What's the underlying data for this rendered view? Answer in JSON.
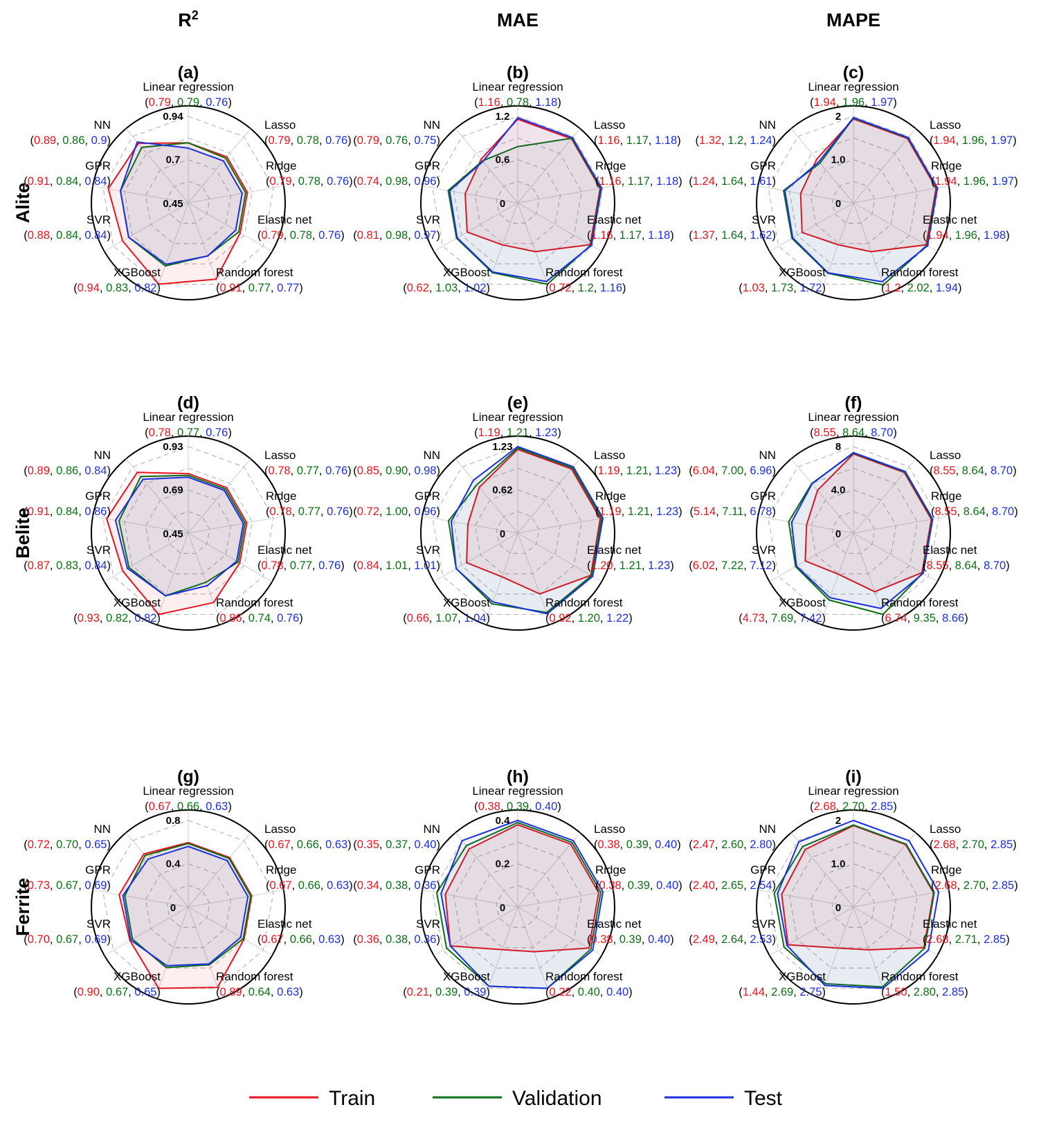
{
  "figure": {
    "columns": [
      {
        "name": "R",
        "sup": "2"
      },
      {
        "name": "MAE",
        "sup": ""
      },
      {
        "name": "MAPE",
        "sup": ""
      }
    ],
    "rows": [
      "Alite",
      "Belite",
      "Ferrite"
    ]
  },
  "legend": [
    {
      "label": "Train",
      "color": "#e8141e"
    },
    {
      "label": "Validation",
      "color": "#0c6e14"
    },
    {
      "label": "Test",
      "color": "#1b2fe0"
    }
  ],
  "chart_data": [
    {
      "type": "radar",
      "panel": "(a)",
      "metric": "R2",
      "phase": "Alite",
      "axes": [
        "Linear regression",
        "Lasso",
        "Ridge",
        "Elastic net",
        "Random forest",
        "XGBoost",
        "SVR",
        "GPR",
        "NN"
      ],
      "rlim": [
        0.45,
        0.94
      ],
      "ticks": [
        "0.45",
        "0.7",
        "0.94"
      ],
      "series": [
        {
          "name": "Train",
          "values": [
            0.79,
            0.79,
            0.79,
            0.79,
            0.91,
            0.94,
            0.88,
            0.91,
            0.89
          ],
          "labels": [
            "0.79",
            "0.79",
            "0.79",
            "0.79",
            "0.91",
            "0.94",
            "0.88",
            "0.91",
            "0.89"
          ]
        },
        {
          "name": "Validation",
          "values": [
            0.79,
            0.78,
            0.78,
            0.78,
            0.77,
            0.83,
            0.84,
            0.84,
            0.86
          ],
          "labels": [
            "0.79",
            "0.78",
            "0.78",
            "0.78",
            "0.77",
            "0.83",
            "0.84",
            "0.84",
            "0.86"
          ]
        },
        {
          "name": "Test",
          "values": [
            0.76,
            0.76,
            0.76,
            0.76,
            0.77,
            0.82,
            0.84,
            0.84,
            0.9
          ],
          "labels": [
            "0.76",
            "0.76",
            "0.76",
            "0.76",
            "0.77",
            "0.82",
            "0.84",
            "0.84",
            "0.9"
          ]
        }
      ]
    },
    {
      "type": "radar",
      "panel": "(b)",
      "metric": "MAE",
      "phase": "Alite",
      "axes": [
        "Linear regression",
        "Lasso",
        "Ridge",
        "Elastic net",
        "Random forest",
        "XGBoost",
        "SVR",
        "GPR",
        "NN"
      ],
      "rlim": [
        0,
        1.2
      ],
      "ticks": [
        "0",
        "0.6",
        "1.2"
      ],
      "series": [
        {
          "name": "Train",
          "values": [
            1.16,
            1.16,
            1.16,
            1.16,
            0.72,
            0.62,
            0.81,
            0.74,
            0.79
          ],
          "labels": [
            "1.16",
            "1.16",
            "1.16",
            "1.16",
            "0.72",
            "0.62",
            "0.81",
            "0.74",
            "0.79"
          ]
        },
        {
          "name": "Validation",
          "values": [
            0.78,
            1.17,
            1.17,
            1.17,
            1.2,
            1.03,
            0.98,
            0.98,
            0.76
          ],
          "labels": [
            "0.78",
            "1.17",
            "1.17",
            "1.17",
            "1.2",
            "1.03",
            "0.98",
            "0.98",
            "0.76"
          ]
        },
        {
          "name": "Test",
          "values": [
            1.18,
            1.18,
            1.18,
            1.18,
            1.16,
            1.02,
            0.97,
            0.96,
            0.75
          ],
          "labels": [
            "1.18",
            "1.18",
            "1.18",
            "1.18",
            "1.16",
            "1.02",
            "0.97",
            "0.96",
            "0.75"
          ]
        }
      ]
    },
    {
      "type": "radar",
      "panel": "(c)",
      "metric": "MAPE",
      "phase": "Alite",
      "axes": [
        "Linear regression",
        "Lasso",
        "Ridge",
        "Elastic net",
        "Random forest",
        "XGBoost",
        "SVR",
        "GPR",
        "NN"
      ],
      "rlim": [
        0,
        2
      ],
      "ticks": [
        "0",
        "1.0",
        "2"
      ],
      "series": [
        {
          "name": "Train",
          "values": [
            1.94,
            1.94,
            1.94,
            1.94,
            1.2,
            1.03,
            1.37,
            1.24,
            1.32
          ],
          "labels": [
            "1.94",
            "1.94",
            "1.94",
            "1.94",
            "1.2",
            "1.03",
            "1.37",
            "1.24",
            "1.32"
          ]
        },
        {
          "name": "Validation",
          "values": [
            1.96,
            1.96,
            1.96,
            1.96,
            2.02,
            1.73,
            1.64,
            1.64,
            1.2
          ],
          "labels": [
            "1.96",
            "1.96",
            "1.96",
            "1.96",
            "2.02",
            "1.73",
            "1.64",
            "1.64",
            "1.2"
          ]
        },
        {
          "name": "Test",
          "values": [
            1.97,
            1.97,
            1.97,
            1.98,
            1.94,
            1.72,
            1.62,
            1.61,
            1.24
          ],
          "labels": [
            "1.97",
            "1.97",
            "1.97",
            "1.98",
            "1.94",
            "1.72",
            "1.62",
            "1.61",
            "1.24"
          ]
        }
      ]
    },
    {
      "type": "radar",
      "panel": "(d)",
      "metric": "R2",
      "phase": "Belite",
      "axes": [
        "Linear regression",
        "Lasso",
        "Ridge",
        "Elastic net",
        "Random forest",
        "XGBoost",
        "SVR",
        "GPR",
        "NN"
      ],
      "rlim": [
        0.45,
        0.93
      ],
      "ticks": [
        "0.45",
        "0.69",
        "0.93"
      ],
      "series": [
        {
          "name": "Train",
          "values": [
            0.78,
            0.78,
            0.78,
            0.78,
            0.86,
            0.93,
            0.87,
            0.91,
            0.89
          ],
          "labels": [
            "0.78",
            "0.78",
            "0.78",
            "0.78",
            "0.86",
            "0.93",
            "0.87",
            "0.91",
            "0.89"
          ]
        },
        {
          "name": "Validation",
          "values": [
            0.77,
            0.77,
            0.77,
            0.77,
            0.74,
            0.82,
            0.83,
            0.84,
            0.86
          ],
          "labels": [
            "0.77",
            "0.77",
            "0.77",
            "0.77",
            "0.74",
            "0.82",
            "0.83",
            "0.84",
            "0.86"
          ]
        },
        {
          "name": "Test",
          "values": [
            0.76,
            0.76,
            0.76,
            0.76,
            0.76,
            0.82,
            0.84,
            0.86,
            0.84
          ],
          "labels": [
            "0.76",
            "0.76",
            "0.76",
            "0.76",
            "0.76",
            "0.82",
            "0.84",
            "0.86",
            "0.84"
          ]
        }
      ]
    },
    {
      "type": "radar",
      "panel": "(e)",
      "metric": "MAE",
      "phase": "Belite",
      "axes": [
        "Linear regression",
        "Lasso",
        "Ridge",
        "Elastic net",
        "Random forest",
        "XGBoost",
        "SVR",
        "GPR",
        "NN"
      ],
      "rlim": [
        0,
        1.23
      ],
      "ticks": [
        "0",
        "0.62",
        "1.23"
      ],
      "series": [
        {
          "name": "Train",
          "values": [
            1.19,
            1.19,
            1.19,
            1.2,
            0.92,
            0.66,
            0.84,
            0.72,
            0.85
          ],
          "labels": [
            "1.19",
            "1.19",
            "1.19",
            "1.20",
            "0.92",
            "0.66",
            "0.84",
            "0.72",
            "0.85"
          ]
        },
        {
          "name": "Validation",
          "values": [
            1.21,
            1.21,
            1.21,
            1.21,
            1.2,
            1.07,
            1.01,
            1.0,
            0.9
          ],
          "labels": [
            "1.21",
            "1.21",
            "1.21",
            "1.21",
            "1.20",
            "1.07",
            "1.01",
            "1.00",
            "0.90"
          ]
        },
        {
          "name": "Test",
          "values": [
            1.23,
            1.23,
            1.23,
            1.23,
            1.22,
            1.04,
            1.01,
            0.96,
            0.98
          ],
          "labels": [
            "1.23",
            "1.23",
            "1.23",
            "1.23",
            "1.22",
            "1.04",
            "1.01",
            "0.96",
            "0.98"
          ]
        }
      ]
    },
    {
      "type": "radar",
      "panel": "(f)",
      "metric": "MAPE",
      "phase": "Belite",
      "axes": [
        "Linear regression",
        "Lasso",
        "Ridge",
        "Elastic net",
        "Random forest",
        "XGBoost",
        "SVR",
        "GPR",
        "NN"
      ],
      "rlim": [
        0,
        9.35
      ],
      "ticks": [
        "0",
        "4.0",
        "8"
      ],
      "series": [
        {
          "name": "Train",
          "values": [
            8.55,
            8.55,
            8.55,
            8.55,
            6.74,
            4.73,
            6.02,
            5.14,
            6.04
          ],
          "labels": [
            "8.55",
            "8.55",
            "8.55",
            "8.55",
            "6.74",
            "4.73",
            "6.02",
            "5.14",
            "6.04"
          ]
        },
        {
          "name": "Validation",
          "values": [
            8.64,
            8.64,
            8.64,
            8.64,
            9.35,
            7.69,
            7.22,
            7.11,
            7.0
          ],
          "labels": [
            "8.64",
            "8.64",
            "8.64",
            "8.64",
            "9.35",
            "7.69",
            "7.22",
            "7.11",
            "7.00"
          ]
        },
        {
          "name": "Test",
          "values": [
            8.7,
            8.7,
            8.7,
            8.7,
            8.66,
            7.42,
            7.12,
            6.78,
            6.96
          ],
          "labels": [
            "8.70",
            "8.70",
            "8.70",
            "8.70",
            "8.66",
            "7.42",
            "7.12",
            "6.78",
            "6.96"
          ]
        }
      ]
    },
    {
      "type": "radar",
      "panel": "(g)",
      "metric": "R2",
      "phase": "Ferrite",
      "axes": [
        "Linear regression",
        "Lasso",
        "Ridge",
        "Elastic net",
        "Random forest",
        "XGBoost",
        "SVR",
        "GPR",
        "NN"
      ],
      "rlim": [
        0,
        0.9
      ],
      "ticks": [
        "0",
        "0.4",
        "0.8"
      ],
      "series": [
        {
          "name": "Train",
          "values": [
            0.67,
            0.67,
            0.67,
            0.67,
            0.89,
            0.9,
            0.7,
            0.73,
            0.72
          ],
          "labels": [
            "0.67",
            "0.67",
            "0.67",
            "0.67",
            "0.89",
            "0.90",
            "0.70",
            "0.73",
            "0.72"
          ]
        },
        {
          "name": "Validation",
          "values": [
            0.66,
            0.66,
            0.66,
            0.66,
            0.64,
            0.67,
            0.67,
            0.67,
            0.7
          ],
          "labels": [
            "0.66",
            "0.66",
            "0.66",
            "0.66",
            "0.64",
            "0.67",
            "0.67",
            "0.67",
            "0.70"
          ]
        },
        {
          "name": "Test",
          "values": [
            0.63,
            0.63,
            0.63,
            0.63,
            0.63,
            0.65,
            0.69,
            0.69,
            0.65
          ],
          "labels": [
            "0.63",
            "0.63",
            "0.63",
            "0.63",
            "0.63",
            "0.65",
            "0.69",
            "0.69",
            "0.65"
          ]
        }
      ]
    },
    {
      "type": "radar",
      "panel": "(h)",
      "metric": "MAE",
      "phase": "Ferrite",
      "axes": [
        "Linear regression",
        "Lasso",
        "Ridge",
        "Elastic net",
        "Random forest",
        "XGBoost",
        "SVR",
        "GPR",
        "NN"
      ],
      "rlim": [
        0,
        0.4
      ],
      "ticks": [
        "0",
        "0.2",
        "0.4"
      ],
      "series": [
        {
          "name": "Train",
          "values": [
            0.38,
            0.38,
            0.38,
            0.38,
            0.22,
            0.21,
            0.36,
            0.34,
            0.35
          ],
          "labels": [
            "0.38",
            "0.38",
            "0.38",
            "0.38",
            "0.22",
            "0.21",
            "0.36",
            "0.34",
            "0.35"
          ]
        },
        {
          "name": "Validation",
          "values": [
            0.39,
            0.39,
            0.39,
            0.39,
            0.4,
            0.39,
            0.38,
            0.38,
            0.37
          ],
          "labels": [
            "0.39",
            "0.39",
            "0.39",
            "0.39",
            "0.40",
            "0.39",
            "0.38",
            "0.38",
            "0.37"
          ]
        },
        {
          "name": "Test",
          "values": [
            0.4,
            0.4,
            0.4,
            0.4,
            0.4,
            0.39,
            0.36,
            0.36,
            0.4
          ],
          "labels": [
            "0.40",
            "0.40",
            "0.40",
            "0.40",
            "0.40",
            "0.39",
            "0.36",
            "0.36",
            "0.40"
          ]
        }
      ]
    },
    {
      "type": "radar",
      "panel": "(i)",
      "metric": "MAPE",
      "phase": "Ferrite",
      "axes": [
        "Linear regression",
        "Lasso",
        "Ridge",
        "Elastic net",
        "Random forest",
        "XGBoost",
        "SVR",
        "GPR",
        "NN"
      ],
      "rlim": [
        0,
        2.85
      ],
      "ticks": [
        "0",
        "1.0",
        "2"
      ],
      "series": [
        {
          "name": "Train",
          "values": [
            2.68,
            2.68,
            2.68,
            2.68,
            1.5,
            1.44,
            2.49,
            2.4,
            2.47
          ],
          "labels": [
            "2.68",
            "2.68",
            "2.68",
            "2.68",
            "1.50",
            "1.44",
            "2.49",
            "2.40",
            "2.47"
          ]
        },
        {
          "name": "Validation",
          "values": [
            2.7,
            2.7,
            2.7,
            2.71,
            2.8,
            2.69,
            2.64,
            2.65,
            2.6
          ],
          "labels": [
            "2.70",
            "2.70",
            "2.70",
            "2.71",
            "2.80",
            "2.69",
            "2.64",
            "2.65",
            "2.60"
          ]
        },
        {
          "name": "Test",
          "values": [
            2.85,
            2.85,
            2.85,
            2.85,
            2.85,
            2.75,
            2.53,
            2.54,
            2.8
          ],
          "labels": [
            "2.85",
            "2.85",
            "2.85",
            "2.85",
            "2.85",
            "2.75",
            "2.53",
            "2.54",
            "2.80"
          ]
        }
      ]
    }
  ]
}
